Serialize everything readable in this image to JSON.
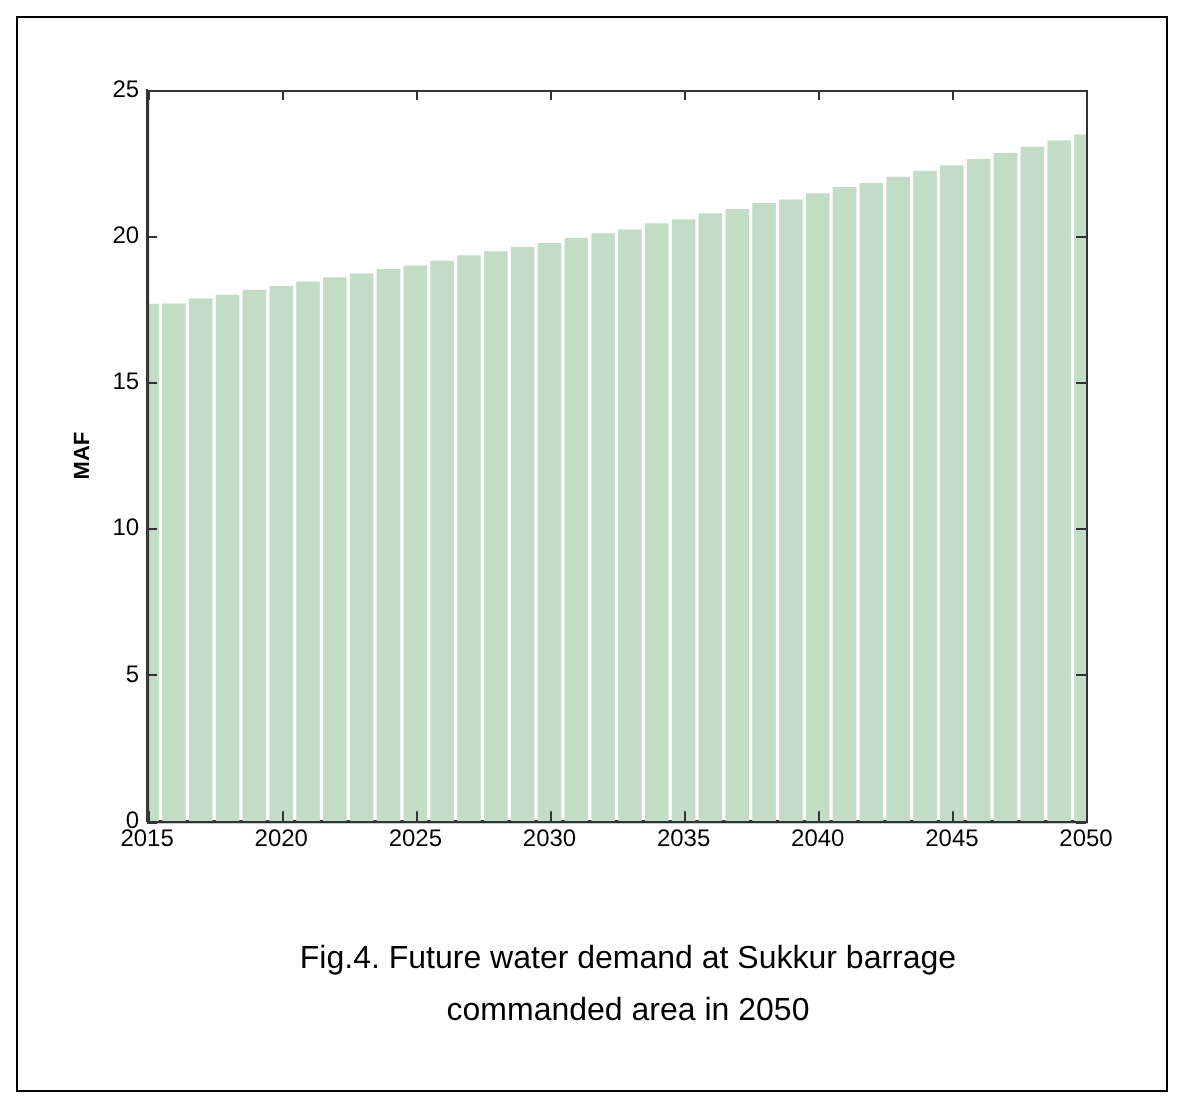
{
  "chart_data": {
    "type": "bar",
    "ylabel": "MAF",
    "x": [
      2015,
      2016,
      2017,
      2018,
      2019,
      2020,
      2021,
      2022,
      2023,
      2024,
      2025,
      2026,
      2027,
      2028,
      2029,
      2030,
      2031,
      2032,
      2033,
      2034,
      2035,
      2036,
      2037,
      2038,
      2039,
      2040,
      2041,
      2042,
      2043,
      2044,
      2045,
      2046,
      2047,
      2048,
      2049,
      2050
    ],
    "values": [
      17.69,
      17.7,
      17.87,
      18.0,
      18.17,
      18.3,
      18.45,
      18.6,
      18.73,
      18.88,
      19.0,
      19.16,
      19.35,
      19.49,
      19.63,
      19.77,
      19.95,
      20.1,
      20.23,
      20.44,
      20.58,
      20.79,
      20.93,
      21.14,
      21.26,
      21.47,
      21.68,
      21.82,
      22.03,
      22.24,
      22.43,
      22.64,
      22.85,
      23.06,
      23.27,
      23.48
    ],
    "color": "#c2dcc5",
    "xlim": [
      2015,
      2050
    ],
    "xticks": [
      2015,
      2020,
      2025,
      2030,
      2035,
      2040,
      2045,
      2050
    ],
    "ylim": [
      0,
      25
    ],
    "yticks": [
      0,
      5,
      10,
      15,
      20,
      25
    ],
    "grid": false,
    "legend": false,
    "annotations": [
      "Fig.4. Future water demand at Sukkur barrage commanded area in 2050"
    ]
  }
}
